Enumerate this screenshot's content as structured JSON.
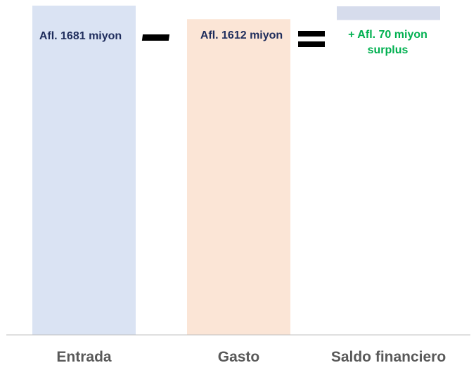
{
  "chart_data": {
    "type": "bar",
    "categories": [
      "Entrada",
      "Gasto",
      "Saldo financiero"
    ],
    "values": [
      1681,
      1612,
      70
    ],
    "ylim": [
      0,
      1681
    ],
    "grid": false,
    "data_labels": [
      [
        "Afl. 1681 miyon"
      ],
      [
        "Afl. 1612 miyon"
      ],
      [
        "+ Afl. 70 miyon",
        "surplus"
      ]
    ],
    "operators": [
      "minus",
      "equals"
    ],
    "colors": {
      "Entrada": "#dae3f3",
      "Gasto": "#fbe5d6",
      "Saldo financiero": "#d6dcec",
      "label_default": "#1f2d5c",
      "label_surplus": "#00b050",
      "axis": "#bfbfbf",
      "operator": "#000000"
    }
  }
}
